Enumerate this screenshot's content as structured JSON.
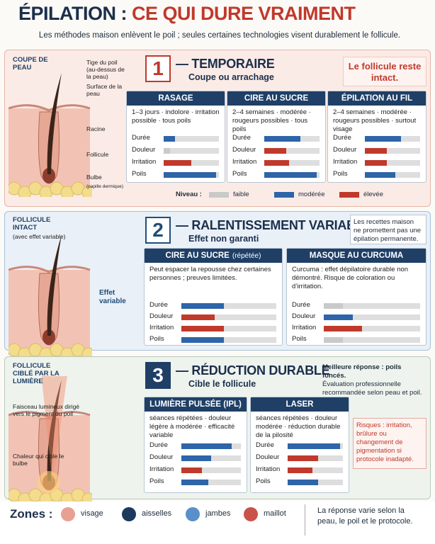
{
  "header": {
    "title_a": "ÉPILATION :",
    "title_b": "CE QUI DURE VRAIMENT",
    "subtitle": "Les méthodes maison enlèvent le poil ; seules certaines technologies visent durablement le follicule."
  },
  "legend": {
    "label": "Niveau :",
    "levels": [
      {
        "name": "faible",
        "color": "#c9c9c9"
      },
      {
        "name": "modérée",
        "color": "#2e64a8"
      },
      {
        "name": "élevée",
        "color": "#c0392b"
      }
    ]
  },
  "sections": [
    {
      "number": 1,
      "title": "— TEMPORAIRE",
      "subtitle": "Coupe ou arrachage",
      "note": "Le follicule reste intact.",
      "illustration": {
        "heading": "COUPE DE PEAU",
        "labels": [
          "Tige du poil (au-dessus de la peau)",
          "Surface de la peau",
          "Racine",
          "Follicule",
          "Bulbe",
          "(papille dermique)"
        ]
      },
      "methods": [
        {
          "name": "RASAGE",
          "description": "1–3 jours · indolore · irritation possible · tous poils",
          "bars": [
            {
              "label": "Durée",
              "value": 20,
              "level": 1
            },
            {
              "label": "Douleur",
              "value": 12,
              "level": 0
            },
            {
              "label": "Irritation",
              "value": 50,
              "level": 2
            },
            {
              "label": "Poils",
              "value": 95,
              "level": 1
            }
          ]
        },
        {
          "name": "CIRE AU SUCRE",
          "description": "2–4 semaines · modérée · rougeurs possibles · tous poils",
          "bars": [
            {
              "label": "Durée",
              "value": 65,
              "level": 1
            },
            {
              "label": "Douleur",
              "value": 40,
              "level": 2
            },
            {
              "label": "Irritation",
              "value": 45,
              "level": 2
            },
            {
              "label": "Poils",
              "value": 95,
              "level": 1
            }
          ]
        },
        {
          "name": "ÉPILATION AU FIL",
          "description": "2–4 semaines · modérée · rougeurs possibles · surtout visage",
          "bars": [
            {
              "label": "Durée",
              "value": 65,
              "level": 1
            },
            {
              "label": "Douleur",
              "value": 40,
              "level": 2
            },
            {
              "label": "Irritation",
              "value": 40,
              "level": 2
            },
            {
              "label": "Poils",
              "value": 55,
              "level": 1
            }
          ]
        }
      ]
    },
    {
      "number": 2,
      "title": "— RALENTISSEMENT VARIABLE",
      "subtitle": "Effet non garanti",
      "note": "Les recettes maison ne promettent pas une épilation permanente.",
      "illustration": {
        "heading": "FOLLICULE INTACT",
        "labels": [
          "(avec effet variable)",
          "Effet variable"
        ]
      },
      "methods": [
        {
          "name": "CIRE AU SUCRE",
          "qualifier": "(répétée)",
          "description": "Peut espacer la repousse chez certaines personnes ; preuves limitées.",
          "bars": [
            {
              "label": "Durée",
              "value": 45,
              "level": 1
            },
            {
              "label": "Douleur",
              "value": 35,
              "level": 2
            },
            {
              "label": "Irritation",
              "value": 45,
              "level": 2
            },
            {
              "label": "Poils",
              "value": 45,
              "level": 1
            }
          ]
        },
        {
          "name": "MASQUE AU CURCUMA",
          "description": "Curcuma : effet dépilatoire durable non démontré. Risque de coloration ou d’irritation.",
          "bars": [
            {
              "label": "Durée",
              "value": 20,
              "level": 0
            },
            {
              "label": "Douleur",
              "value": 30,
              "level": 1
            },
            {
              "label": "Irritation",
              "value": 40,
              "level": 2
            },
            {
              "label": "Poils",
              "value": 20,
              "level": 0
            }
          ]
        }
      ]
    },
    {
      "number": 3,
      "title": "— RÉDUCTION DURABLE",
      "subtitle": "Cible le follicule",
      "note": "Meilleure réponse : poils foncés.",
      "note_detail": "Évaluation professionnelle recommandée selon peau et poil.",
      "risk": "Risques : irritation, brûlure ou changement de pigmentation si protocole inadapté.",
      "illustration": {
        "heading": "FOLLICULE CIBLÉ PAR LA LUMIÈRE",
        "labels": [
          "Faisceau lumineux dirigé vers le pigment du poil",
          "Chaleur qui cible le bulbe"
        ]
      },
      "methods": [
        {
          "name": "LUMIÈRE PULSÉE (IPL)",
          "description": "séances répétées · douleur légère à modérée · efficacité variable",
          "bars": [
            {
              "label": "Durée",
              "value": 85,
              "level": 1
            },
            {
              "label": "Douleur",
              "value": 50,
              "level": 1
            },
            {
              "label": "Irritation",
              "value": 35,
              "level": 2
            },
            {
              "label": "Poils",
              "value": 45,
              "level": 1
            }
          ]
        },
        {
          "name": "LASER",
          "description": "séances répétées · douleur modérée · réduction durable de la pilosité",
          "bars": [
            {
              "label": "Durée",
              "value": 95,
              "level": 1
            },
            {
              "label": "Douleur",
              "value": 55,
              "level": 2
            },
            {
              "label": "Irritation",
              "value": 45,
              "level": 2
            },
            {
              "label": "Poils",
              "value": 55,
              "level": 1
            }
          ]
        }
      ]
    }
  ],
  "zones": {
    "label": "Zones :",
    "items": [
      {
        "name": "visage",
        "color": "#e8a093"
      },
      {
        "name": "aisselles",
        "color": "#1b3a5c"
      },
      {
        "name": "jambes",
        "color": "#5b8fc9"
      },
      {
        "name": "maillot",
        "color": "#c9524a"
      }
    ],
    "note": "La réponse varie selon la peau, le poil et le protocole."
  }
}
